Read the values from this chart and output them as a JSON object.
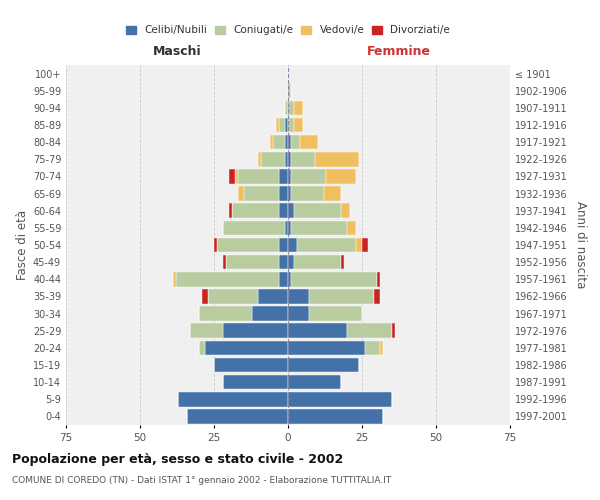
{
  "age_groups": [
    "0-4",
    "5-9",
    "10-14",
    "15-19",
    "20-24",
    "25-29",
    "30-34",
    "35-39",
    "40-44",
    "45-49",
    "50-54",
    "55-59",
    "60-64",
    "65-69",
    "70-74",
    "75-79",
    "80-84",
    "85-89",
    "90-94",
    "95-99",
    "100+"
  ],
  "birth_years": [
    "1997-2001",
    "1992-1996",
    "1987-1991",
    "1982-1986",
    "1977-1981",
    "1972-1976",
    "1967-1971",
    "1962-1966",
    "1957-1961",
    "1952-1956",
    "1947-1951",
    "1942-1946",
    "1937-1941",
    "1932-1936",
    "1927-1931",
    "1922-1926",
    "1917-1921",
    "1912-1916",
    "1907-1911",
    "1902-1906",
    "≤ 1901"
  ],
  "maschi": {
    "celibi": [
      34,
      37,
      22,
      25,
      28,
      22,
      12,
      10,
      3,
      3,
      3,
      1,
      3,
      3,
      3,
      1,
      1,
      1,
      0,
      0,
      0
    ],
    "coniugati": [
      0,
      0,
      0,
      0,
      2,
      11,
      18,
      17,
      35,
      18,
      21,
      21,
      16,
      12,
      14,
      8,
      4,
      2,
      1,
      0,
      0
    ],
    "vedovi": [
      0,
      0,
      0,
      0,
      0,
      0,
      0,
      0,
      1,
      0,
      0,
      0,
      0,
      2,
      1,
      1,
      1,
      1,
      0,
      0,
      0
    ],
    "divorziati": [
      0,
      0,
      0,
      0,
      0,
      0,
      0,
      2,
      0,
      1,
      1,
      0,
      1,
      0,
      2,
      0,
      0,
      0,
      0,
      0,
      0
    ]
  },
  "femmine": {
    "nubili": [
      32,
      35,
      18,
      24,
      26,
      20,
      7,
      7,
      1,
      2,
      3,
      1,
      2,
      1,
      1,
      1,
      1,
      0,
      0,
      0,
      0
    ],
    "coniugate": [
      0,
      0,
      0,
      0,
      5,
      15,
      18,
      22,
      29,
      16,
      20,
      19,
      16,
      11,
      12,
      8,
      3,
      2,
      2,
      1,
      0
    ],
    "vedove": [
      0,
      0,
      0,
      0,
      1,
      0,
      0,
      0,
      0,
      0,
      2,
      3,
      3,
      6,
      10,
      15,
      6,
      3,
      3,
      0,
      0
    ],
    "divorziate": [
      0,
      0,
      0,
      0,
      0,
      1,
      0,
      2,
      1,
      1,
      2,
      0,
      0,
      0,
      0,
      0,
      0,
      0,
      0,
      0,
      0
    ]
  },
  "colors": {
    "celibi": "#4472a8",
    "coniugati": "#b8cca0",
    "vedovi": "#f0c060",
    "divorziati": "#cc2222"
  },
  "legend_labels": [
    "Celibi/Nubili",
    "Coniugati/e",
    "Vedovi/e",
    "Divorziati/e"
  ],
  "title": "Popolazione per età, sesso e stato civile - 2002",
  "subtitle": "COMUNE DI COREDO (TN) - Dati ISTAT 1° gennaio 2002 - Elaborazione TUTTITALIA.IT",
  "xlabel_left": "Maschi",
  "xlabel_right": "Femmine",
  "ylabel_left": "Fasce di età",
  "ylabel_right": "Anni di nascita",
  "xlim": 75,
  "bg_color": "#f0f0f0",
  "grid_color": "#cccccc"
}
